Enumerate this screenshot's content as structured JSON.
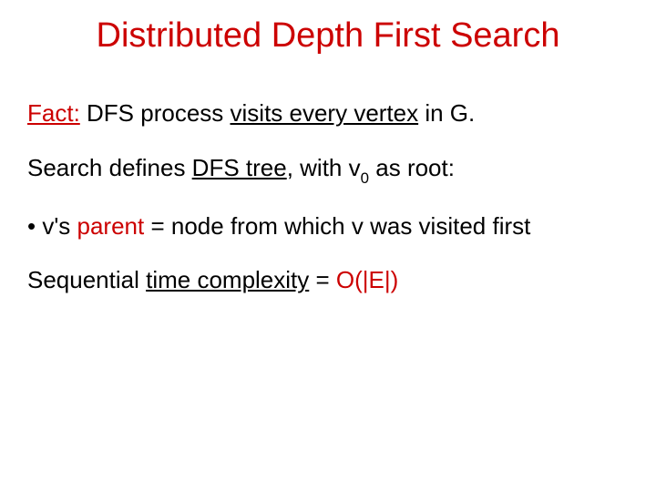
{
  "colors": {
    "accent": "#cc0000",
    "text": "#000000",
    "background": "#ffffff"
  },
  "title": "Distributed Depth First Search",
  "line1": {
    "fact_label": "Fact:",
    "t1": " DFS process ",
    "visits_every_vertex": "visits every vertex",
    "t2": " in G."
  },
  "line2": {
    "t1": "Search defines ",
    "dfs_tree": "DFS tree",
    "t2": ", with v",
    "sub0": "0",
    "t3": " as root:"
  },
  "line3": {
    "bullet": "• ",
    "t1": "v's ",
    "parent": "parent",
    "t2": " = node from which v was visited first"
  },
  "line4": {
    "t1": "Sequential ",
    "time_complexity": "time complexity",
    "t2": " = ",
    "bigO": "O(|E|)"
  }
}
